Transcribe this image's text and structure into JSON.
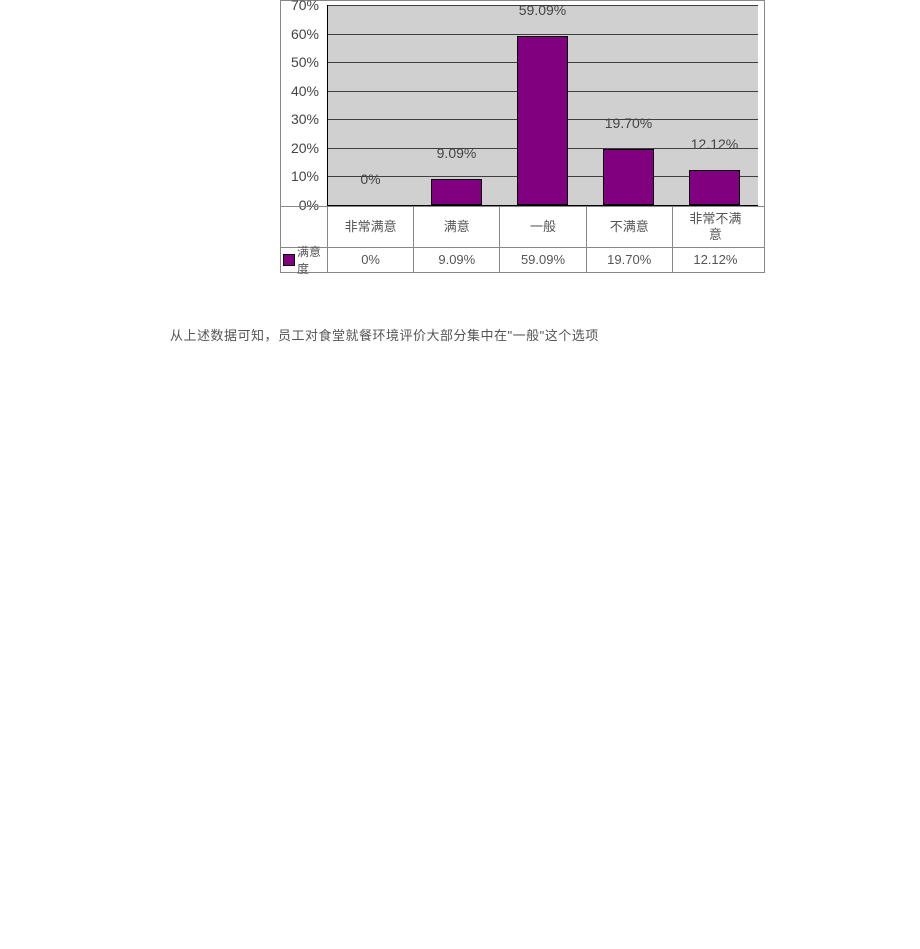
{
  "chart": {
    "type": "bar",
    "categories": [
      "非常满意",
      "满意",
      "一般",
      "不满意",
      "非常不满\n意"
    ],
    "values": [
      0,
      9.09,
      59.09,
      19.7,
      12.12
    ],
    "value_labels": [
      "0%",
      "9.09%",
      "59.09%",
      "19.70%",
      "12.12%"
    ],
    "bar_color": "#800080",
    "bar_border_color": "#000000",
    "plot_background_color": "#d0d0d0",
    "grid_color": "#000000",
    "y_ticks": [
      0,
      10,
      20,
      30,
      40,
      50,
      60,
      70
    ],
    "y_tick_labels": [
      "0%",
      "10%",
      "20%",
      "30%",
      "40%",
      "50%",
      "60%",
      "70%"
    ],
    "ylim_max": 70,
    "series_name": "满意度",
    "axis_label_color": "#444444",
    "axis_label_fontsize": 14,
    "cell_label_fontsize": 13,
    "cell_label_color": "#555555",
    "chart_border_color": "#888888"
  },
  "caption_text": "从上述数据可知，员工对食堂就餐环境评价大部分集中在\"一般\"这个选项"
}
